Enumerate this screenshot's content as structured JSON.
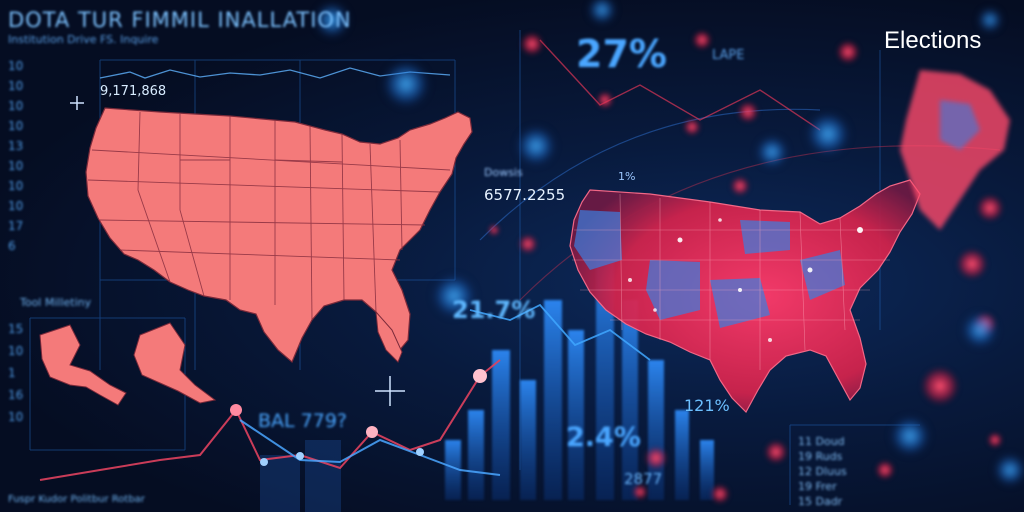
{
  "header": {
    "title": "DOTA TUR FIMMIL INALLATION",
    "subtitle": "Institution Drive FS. Inquire",
    "brand": "Elections"
  },
  "left_axis": [
    "10",
    "10",
    "10",
    "10",
    "13",
    "10",
    "10",
    "10",
    "17",
    "6",
    "15",
    "10",
    "1",
    "16",
    "10"
  ],
  "labels": {
    "top_number": "9,171,868",
    "mid_number": "6577.2255",
    "mid_caption": "Dowsis",
    "pct_top": "27%",
    "pct_small": "1%",
    "pct_mid": "21.7%",
    "pct_mid_right": "121%",
    "pct_low": "2.4%",
    "num_low": "2877",
    "bal_label": "BAL 779?",
    "top_small": "LAPE",
    "small_caption": "Tool Milletiny",
    "legend": "Fuspr  Kudor Politbur Rotbar"
  },
  "right_list": [
    "11 Doud",
    "19 Ruds",
    "12 Dluus",
    "19 Frer",
    "15 Dadr"
  ],
  "colors": {
    "background": "#050d22",
    "map_fill": "#f47a7a",
    "map_stroke": "#7a2a3a",
    "accent_blue": "#3fa7ff",
    "accent_red": "#ff3b5c"
  }
}
